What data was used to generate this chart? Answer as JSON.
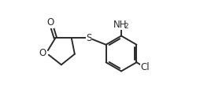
{
  "bg_color": "#ffffff",
  "bond_color": "#2b2b2b",
  "atom_label_color": "#2b2b2b",
  "line_width": 1.4,
  "font_size": 8.5,
  "xlim": [
    0.0,
    1.15
  ],
  "ylim": [
    0.0,
    1.0
  ]
}
